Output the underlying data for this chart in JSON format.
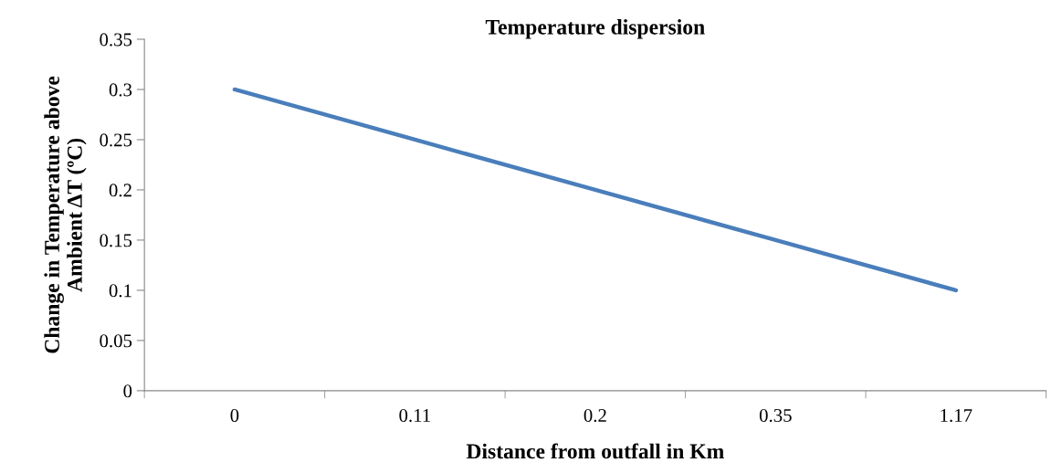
{
  "chart_data": {
    "type": "line",
    "title": "Temperature dispersion",
    "xlabel": "Distance from outfall in Km",
    "ylabel": "Change in Temperature above\nAmbient ΔT (ºC)",
    "categories": [
      "0",
      "0.11",
      "0.2",
      "0.35",
      "1.17"
    ],
    "series": [
      {
        "color": "#4a7ebb",
        "values": [
          0.3,
          0.25,
          0.2,
          0.15,
          0.1
        ]
      }
    ],
    "ylim": [
      0,
      0.35
    ],
    "yticks": [
      0,
      0.05,
      0.1,
      0.15,
      0.2,
      0.25,
      0.3,
      0.35
    ],
    "grid": false,
    "legend": false,
    "marker": "none",
    "line_style": "solid"
  }
}
